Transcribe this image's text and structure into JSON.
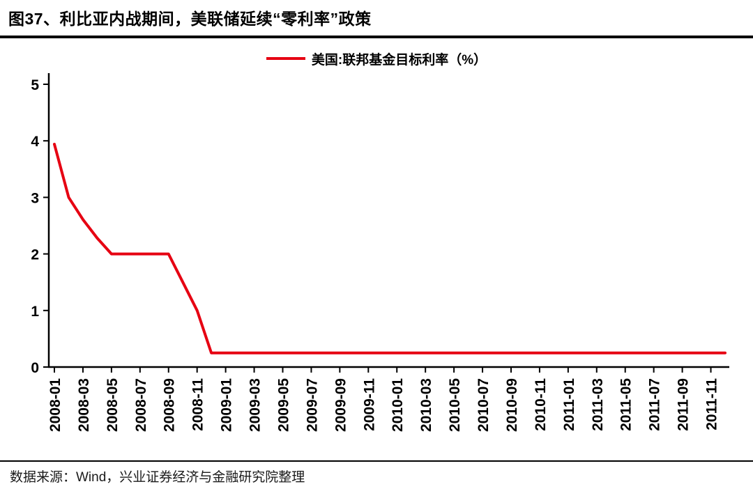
{
  "title": "图37、利比亚内战期间，美联储延续“零利率”政策",
  "source": "数据来源：Wind，兴业证券经济与金融研究院整理",
  "chart_data": {
    "type": "line",
    "title": "图37、利比亚内战期间，美联储延续“零利率”政策",
    "legend_position": "top-center",
    "grid": false,
    "ylim": [
      0,
      5
    ],
    "yticks": [
      0,
      1,
      2,
      3,
      4,
      5
    ],
    "x": [
      "2008-01",
      "2008-02",
      "2008-03",
      "2008-04",
      "2008-05",
      "2008-06",
      "2008-07",
      "2008-08",
      "2008-09",
      "2008-10",
      "2008-11",
      "2008-12",
      "2009-01",
      "2009-02",
      "2009-03",
      "2009-04",
      "2009-05",
      "2009-06",
      "2009-07",
      "2009-08",
      "2009-09",
      "2009-10",
      "2009-11",
      "2009-12",
      "2010-01",
      "2010-02",
      "2010-03",
      "2010-04",
      "2010-05",
      "2010-06",
      "2010-07",
      "2010-08",
      "2010-09",
      "2010-10",
      "2010-11",
      "2010-12",
      "2011-01",
      "2011-02",
      "2011-03",
      "2011-04",
      "2011-05",
      "2011-06",
      "2011-07",
      "2011-08",
      "2011-09",
      "2011-10",
      "2011-11",
      "2011-12"
    ],
    "x_tick_labels": [
      "2008-01",
      "2008-03",
      "2008-05",
      "2008-07",
      "2008-09",
      "2008-11",
      "2009-01",
      "2009-03",
      "2009-05",
      "2009-07",
      "2009-09",
      "2009-11",
      "2010-01",
      "2010-03",
      "2010-05",
      "2010-07",
      "2010-09",
      "2010-11",
      "2011-01",
      "2011-03",
      "2011-05",
      "2011-07",
      "2011-09",
      "2011-11"
    ],
    "series": [
      {
        "name": "美国:联邦基金目标利率（%）",
        "color": "#e60012",
        "values": [
          3.94,
          3.0,
          2.61,
          2.28,
          2.0,
          2.0,
          2.0,
          2.0,
          2.0,
          1.5,
          1.0,
          0.25,
          0.25,
          0.25,
          0.25,
          0.25,
          0.25,
          0.25,
          0.25,
          0.25,
          0.25,
          0.25,
          0.25,
          0.25,
          0.25,
          0.25,
          0.25,
          0.25,
          0.25,
          0.25,
          0.25,
          0.25,
          0.25,
          0.25,
          0.25,
          0.25,
          0.25,
          0.25,
          0.25,
          0.25,
          0.25,
          0.25,
          0.25,
          0.25,
          0.25,
          0.25,
          0.25,
          0.25
        ]
      }
    ]
  }
}
